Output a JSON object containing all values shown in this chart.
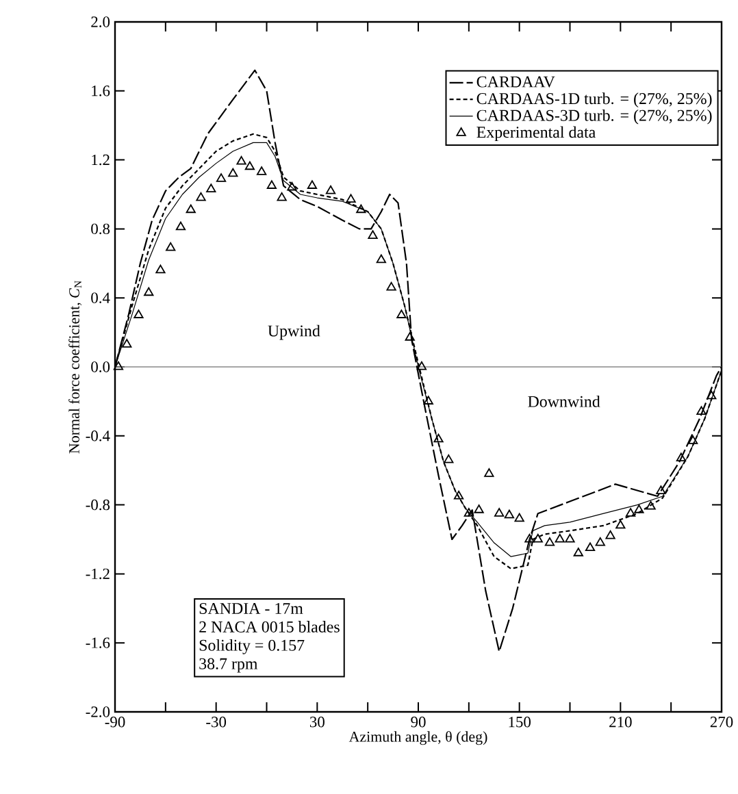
{
  "chart_data": {
    "type": "line",
    "xlabel": "Azimuth angle, θ (deg)",
    "ylabel": "Normal force coefficient, *C*$_{N}$",
    "xlim": [
      -90,
      270
    ],
    "ylim": [
      -2.0,
      2.0
    ],
    "xticks": [
      {
        "value": -90,
        "label": "-90"
      },
      {
        "value": -60,
        "label": null
      },
      {
        "value": -30,
        "label": "-30"
      },
      {
        "value": 0,
        "label": null
      },
      {
        "value": 30,
        "label": "30"
      },
      {
        "value": 60,
        "label": null
      },
      {
        "value": 90,
        "label": "90"
      },
      {
        "value": 120,
        "label": null
      },
      {
        "value": 150,
        "label": "150"
      },
      {
        "value": 180,
        "label": null
      },
      {
        "value": 210,
        "label": "210"
      },
      {
        "value": 240,
        "label": null
      },
      {
        "value": 270,
        "label": "270"
      }
    ],
    "yticks": [
      {
        "value": -2.0,
        "label": "-2.0"
      },
      {
        "value": -1.6,
        "label": "-1.6"
      },
      {
        "value": -1.2,
        "label": "-1.2"
      },
      {
        "value": -0.8,
        "label": "-0.8"
      },
      {
        "value": -0.4,
        "label": "-0.4"
      },
      {
        "value": 0.0,
        "label": "0.0"
      },
      {
        "value": 0.4,
        "label": "0.4"
      },
      {
        "value": 0.8,
        "label": "0.8"
      },
      {
        "value": 1.2,
        "label": "1.2"
      },
      {
        "value": 1.6,
        "label": "1.6"
      },
      {
        "value": 2.0,
        "label": "2.0"
      }
    ],
    "grid": false,
    "legend": "top right",
    "ref_lines": [
      {
        "axis": "y",
        "value": 0.0,
        "color": "#888888"
      }
    ],
    "series": [
      {
        "name": "CARDAAV",
        "color": "#000000",
        "line_style": "dashed",
        "marker": "none",
        "x": [
          -90,
          -82,
          -75,
          -68,
          -60,
          -52,
          -45,
          -35,
          -20,
          -7,
          0,
          5,
          10,
          20,
          30,
          45,
          55,
          62,
          68,
          73,
          78,
          83,
          86,
          94,
          102,
          110,
          116,
          122,
          130,
          138,
          146,
          156,
          161,
          180,
          207,
          232,
          245,
          257,
          267,
          270
        ],
        "values": [
          0,
          0.3,
          0.6,
          0.85,
          1.02,
          1.1,
          1.15,
          1.35,
          1.55,
          1.72,
          1.6,
          1.3,
          1.05,
          0.97,
          0.93,
          0.85,
          0.8,
          0.8,
          0.9,
          1.0,
          0.95,
          0.6,
          0.16,
          -0.24,
          -0.63,
          -1.0,
          -0.92,
          -0.83,
          -1.3,
          -1.65,
          -1.4,
          -1.0,
          -0.85,
          -0.78,
          -0.68,
          -0.75,
          -0.55,
          -0.3,
          -0.05,
          0.0
        ]
      },
      {
        "name": "CARDAAS-1D turb. = (27%, 25%)",
        "color": "#000000",
        "line_style": "dotted",
        "marker": "none",
        "x": [
          -90,
          -80,
          -70,
          -60,
          -50,
          -40,
          -30,
          -20,
          -8,
          0,
          5,
          10,
          20,
          30,
          45,
          60,
          68,
          75,
          82,
          90,
          98,
          105,
          112,
          118,
          125,
          135,
          145,
          155,
          158,
          165,
          180,
          200,
          220,
          235,
          250,
          260,
          270
        ],
        "values": [
          0,
          0.35,
          0.68,
          0.92,
          1.05,
          1.15,
          1.25,
          1.31,
          1.35,
          1.33,
          1.25,
          1.1,
          1.02,
          1.0,
          0.97,
          0.9,
          0.8,
          0.6,
          0.35,
          0.02,
          -0.3,
          -0.55,
          -0.72,
          -0.82,
          -0.92,
          -1.1,
          -1.17,
          -1.15,
          -1.0,
          -0.97,
          -0.95,
          -0.92,
          -0.85,
          -0.76,
          -0.52,
          -0.3,
          -0.02
        ]
      },
      {
        "name": "CARDAAS-3D turb. = (27%, 25%)",
        "color": "#000000",
        "line_style": "solid",
        "marker": "none",
        "x": [
          -90,
          -80,
          -70,
          -60,
          -50,
          -40,
          -30,
          -20,
          -8,
          0,
          5,
          10,
          20,
          30,
          45,
          60,
          68,
          75,
          82,
          90,
          98,
          105,
          112,
          118,
          125,
          135,
          145,
          155,
          158,
          165,
          180,
          200,
          220,
          235,
          250,
          260,
          270
        ],
        "values": [
          0,
          0.3,
          0.62,
          0.86,
          1.0,
          1.1,
          1.18,
          1.25,
          1.3,
          1.3,
          1.22,
          1.08,
          1.0,
          0.98,
          0.96,
          0.9,
          0.8,
          0.6,
          0.35,
          0.0,
          -0.3,
          -0.55,
          -0.72,
          -0.82,
          -0.9,
          -1.02,
          -1.1,
          -1.08,
          -0.95,
          -0.92,
          -0.9,
          -0.85,
          -0.8,
          -0.75,
          -0.52,
          -0.3,
          -0.02
        ]
      },
      {
        "name": "Experimental data",
        "type": "scatter",
        "color": "#000000",
        "marker": "triangle",
        "x": [
          -88,
          -83,
          -76,
          -70,
          -63,
          -57,
          -51,
          -45,
          -39,
          -33,
          -27,
          -20,
          -15,
          -10,
          -3,
          3,
          9,
          15,
          27,
          38,
          50,
          56,
          63,
          68,
          74,
          80,
          85,
          92,
          96,
          102,
          108,
          114,
          120,
          126,
          132,
          138,
          144,
          150,
          156,
          161,
          168,
          174,
          180,
          185,
          192,
          198,
          204,
          210,
          216,
          221,
          228,
          234,
          246,
          253,
          258,
          264
        ],
        "values": [
          0,
          0.13,
          0.3,
          0.43,
          0.56,
          0.69,
          0.81,
          0.91,
          0.98,
          1.03,
          1.09,
          1.12,
          1.19,
          1.16,
          1.13,
          1.05,
          0.98,
          1.04,
          1.05,
          1.02,
          0.97,
          0.91,
          0.76,
          0.62,
          0.46,
          0.3,
          0.17,
          0,
          -0.2,
          -0.42,
          -0.54,
          -0.75,
          -0.85,
          -0.83,
          -0.62,
          -0.85,
          -0.86,
          -0.88,
          -1.0,
          -1.0,
          -1.02,
          -1.0,
          -1.0,
          -1.08,
          -1.05,
          -1.02,
          -0.98,
          -0.92,
          -0.85,
          -0.83,
          -0.81,
          -0.72,
          -0.53,
          -0.43,
          -0.26,
          -0.17
        ]
      }
    ],
    "annotations": [
      "Upwind",
      "Downwind",
      "SANDIA - 17m",
      "2 NACA 0015 blades",
      "Solidity = 0.157",
      "38.7 rpm"
    ]
  }
}
